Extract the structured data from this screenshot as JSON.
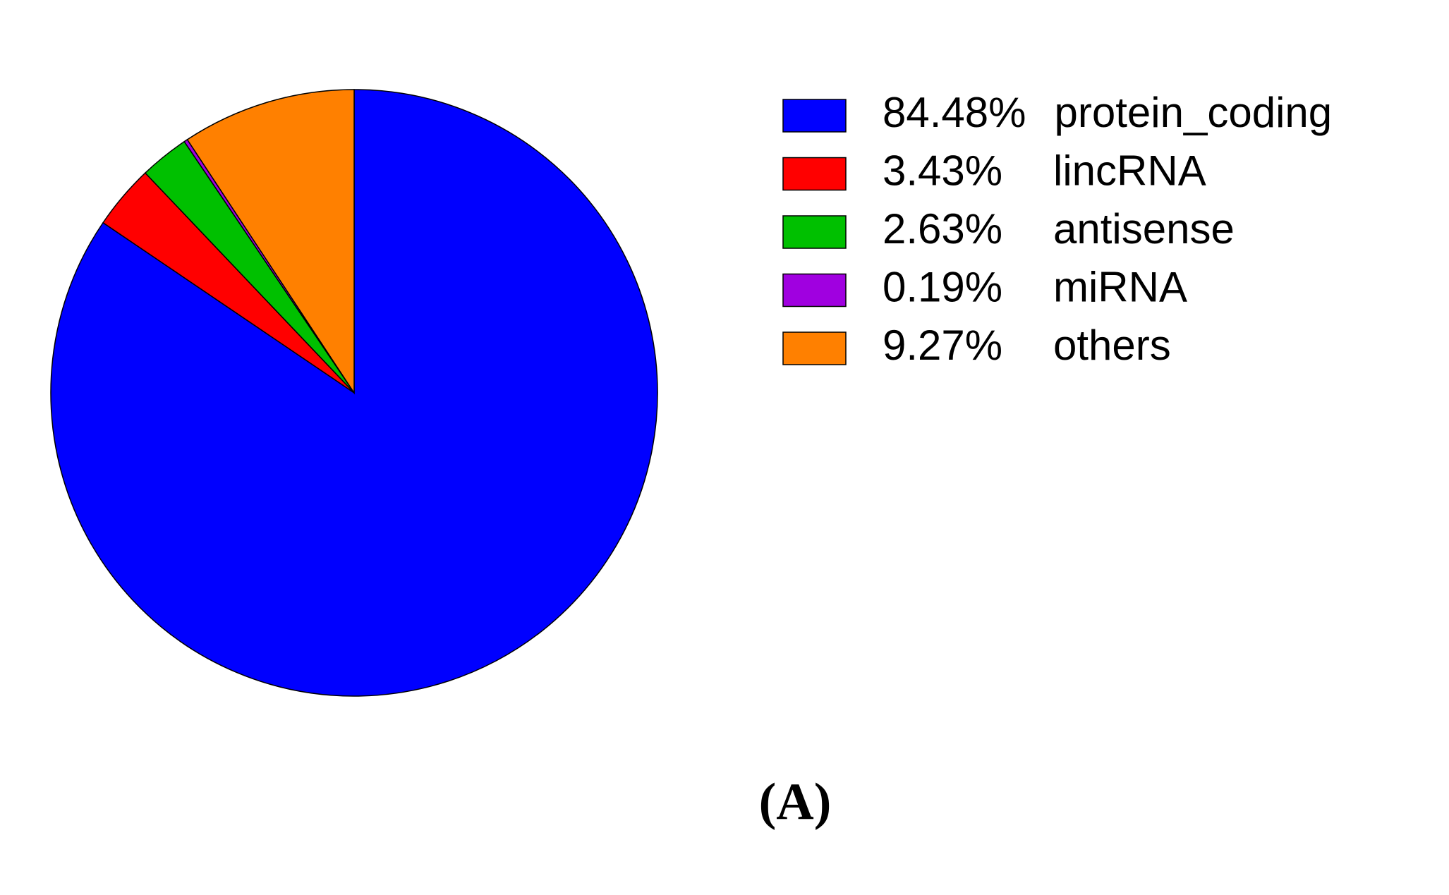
{
  "chart_data": {
    "type": "pie",
    "categories": [
      "protein_coding",
      "lincRNA",
      "antisense",
      "miRNA",
      "others"
    ],
    "values": [
      84.48,
      3.43,
      2.63,
      0.19,
      9.27
    ],
    "value_labels": [
      "84.48%",
      "3.43%",
      "2.63%",
      "0.19%",
      "9.27%"
    ],
    "colors": [
      "#0000ff",
      "#ff0000",
      "#00c000",
      "#a000e0",
      "#ff8000"
    ],
    "caption": "(A)"
  }
}
